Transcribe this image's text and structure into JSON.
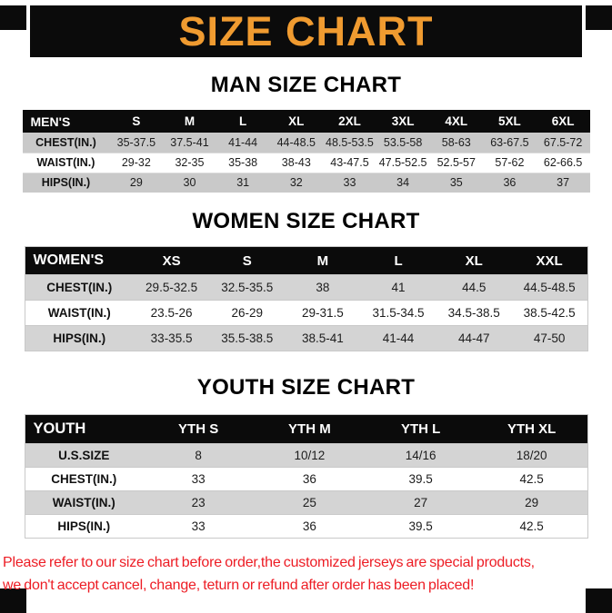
{
  "banner": {
    "title": "SIZE CHART"
  },
  "sections": {
    "men": {
      "heading": "MAN SIZE CHART",
      "table": {
        "header": [
          "MEN'S",
          "S",
          "M",
          "L",
          "XL",
          "2XL",
          "3XL",
          "4XL",
          "5XL",
          "6XL"
        ],
        "rows": [
          [
            "CHEST(IN.)",
            "35-37.5",
            "37.5-41",
            "41-44",
            "44-48.5",
            "48.5-53.5",
            "53.5-58",
            "58-63",
            "63-67.5",
            "67.5-72"
          ],
          [
            "WAIST(IN.)",
            "29-32",
            "32-35",
            "35-38",
            "38-43",
            "43-47.5",
            "47.5-52.5",
            "52.5-57",
            "57-62",
            "62-66.5"
          ],
          [
            "HIPS(IN.)",
            "29",
            "30",
            "31",
            "32",
            "33",
            "34",
            "35",
            "36",
            "37"
          ]
        ]
      }
    },
    "women": {
      "heading": "WOMEN SIZE CHART",
      "table": {
        "header": [
          "WOMEN'S",
          "XS",
          "S",
          "M",
          "L",
          "XL",
          "XXL"
        ],
        "rows": [
          [
            "CHEST(IN.)",
            "29.5-32.5",
            "32.5-35.5",
            "38",
            "41",
            "44.5",
            "44.5-48.5"
          ],
          [
            "WAIST(IN.)",
            "23.5-26",
            "26-29",
            "29-31.5",
            "31.5-34.5",
            "34.5-38.5",
            "38.5-42.5"
          ],
          [
            "HIPS(IN.)",
            "33-35.5",
            "35.5-38.5",
            "38.5-41",
            "41-44",
            "44-47",
            "47-50"
          ]
        ]
      }
    },
    "youth": {
      "heading": "YOUTH SIZE CHART",
      "table": {
        "header": [
          "YOUTH",
          "YTH S",
          "YTH M",
          "YTH L",
          "YTH XL"
        ],
        "rows": [
          [
            "U.S.SIZE",
            "8",
            "10/12",
            "14/16",
            "18/20"
          ],
          [
            "CHEST(IN.)",
            "33",
            "36",
            "39.5",
            "42.5"
          ],
          [
            "WAIST(IN.)",
            "23",
            "25",
            "27",
            "29"
          ],
          [
            "HIPS(IN.)",
            "33",
            "36",
            "39.5",
            "42.5"
          ]
        ]
      }
    }
  },
  "footer": {
    "line1": "Please refer to our size chart before order,the customized jerseys are special products,",
    "line2": "we don't accept cancel, change, teturn or refund after order has been placed!"
  },
  "colors": {
    "accent_orange": "#F09B30",
    "warning_red": "#ED1C24",
    "header_black": "#0B0B0B",
    "row_gray_men": "#C9C9C9",
    "row_gray": "#D4D4D4"
  }
}
